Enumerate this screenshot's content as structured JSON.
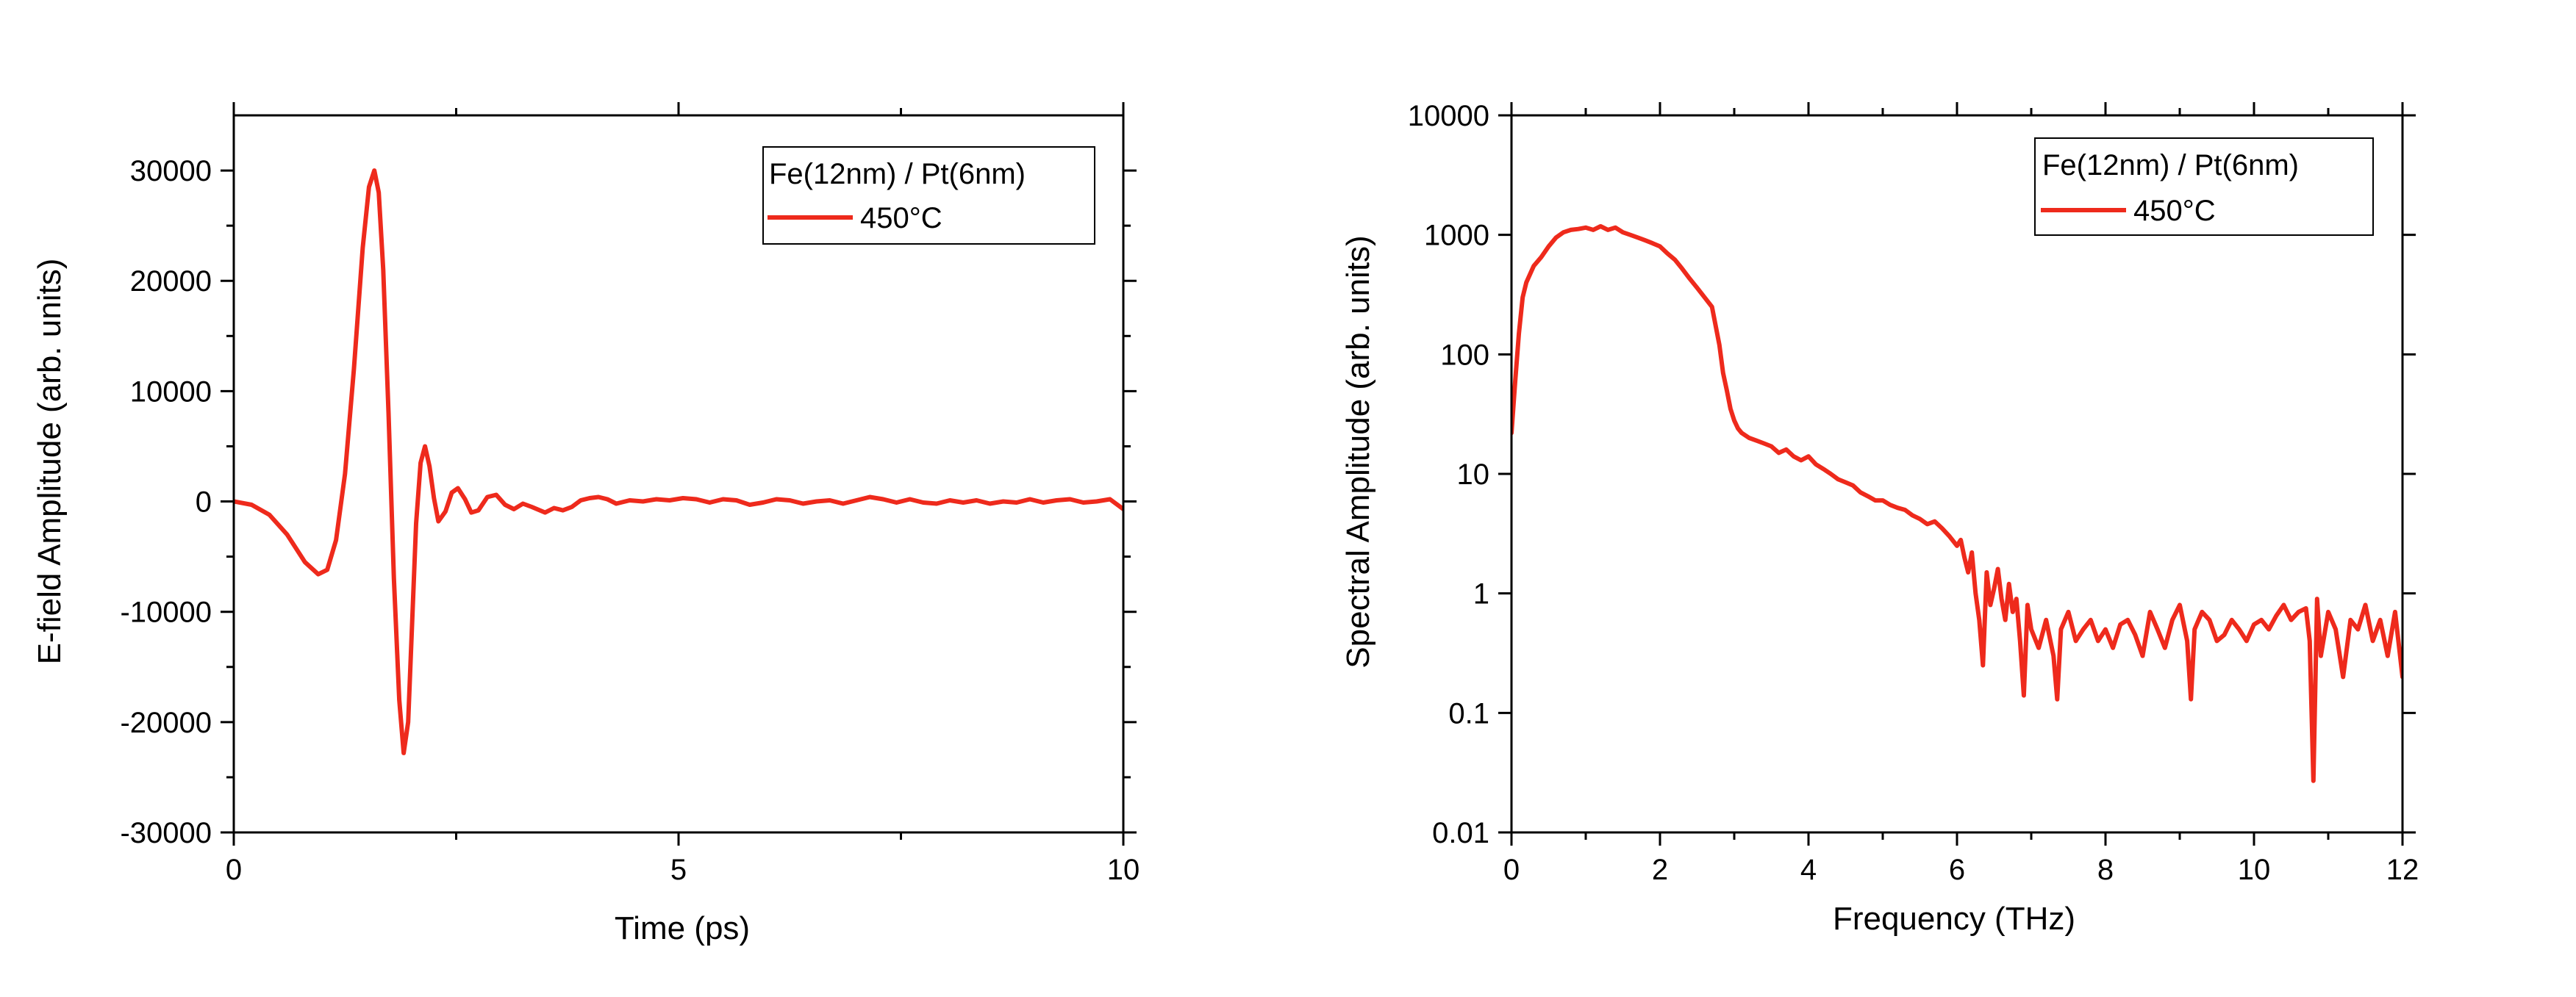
{
  "chart_data": [
    {
      "type": "line",
      "title": "",
      "xlabel": "Time (ps)",
      "ylabel": "E-field Amplitude (arb. units)",
      "xlim": [
        0,
        10
      ],
      "ylim": [
        -30000,
        35000
      ],
      "yscale": "linear",
      "xticks": [
        0,
        5,
        10
      ],
      "xtick_labels": [
        "0",
        "5",
        "10"
      ],
      "yticks": [
        -30000,
        -20000,
        -10000,
        0,
        10000,
        20000,
        30000
      ],
      "ytick_labels": [
        "-30000",
        "-20000",
        "-10000",
        "0",
        "10000",
        "20000",
        "30000"
      ],
      "grid": false,
      "legend_title": "Fe(12nm) / Pt(6nm)",
      "legend_position": "top-right",
      "color": "#ee2a1c",
      "series": [
        {
          "name": "450°C",
          "x": [
            0,
            0.2,
            0.4,
            0.6,
            0.8,
            0.95,
            1.05,
            1.15,
            1.25,
            1.35,
            1.45,
            1.52,
            1.58,
            1.63,
            1.68,
            1.74,
            1.8,
            1.86,
            1.91,
            1.96,
            2.0,
            2.05,
            2.1,
            2.15,
            2.2,
            2.25,
            2.3,
            2.38,
            2.45,
            2.52,
            2.6,
            2.67,
            2.75,
            2.85,
            2.95,
            3.05,
            3.15,
            3.25,
            3.35,
            3.5,
            3.6,
            3.7,
            3.8,
            3.9,
            4.0,
            4.1,
            4.2,
            4.3,
            4.45,
            4.6,
            4.75,
            4.9,
            5.05,
            5.2,
            5.35,
            5.5,
            5.65,
            5.8,
            5.95,
            6.1,
            6.25,
            6.4,
            6.55,
            6.7,
            6.85,
            7.0,
            7.15,
            7.3,
            7.45,
            7.6,
            7.75,
            7.9,
            8.05,
            8.2,
            8.35,
            8.5,
            8.65,
            8.8,
            8.95,
            9.1,
            9.25,
            9.4,
            9.55,
            9.7,
            9.85,
            10.0
          ],
          "values": [
            0,
            -300,
            -1200,
            -3000,
            -5500,
            -6600,
            -6200,
            -3500,
            2500,
            12000,
            23000,
            28500,
            30000,
            28000,
            21000,
            8000,
            -7000,
            -18000,
            -22800,
            -20000,
            -12000,
            -2000,
            3500,
            5000,
            3200,
            300,
            -1800,
            -900,
            800,
            1200,
            200,
            -1000,
            -800,
            400,
            600,
            -300,
            -700,
            -200,
            -500,
            -1000,
            -600,
            -800,
            -500,
            100,
            300,
            400,
            200,
            -200,
            100,
            0,
            200,
            100,
            300,
            200,
            -100,
            200,
            100,
            -300,
            -100,
            200,
            100,
            -200,
            0,
            100,
            -200,
            100,
            400,
            200,
            -100,
            200,
            -100,
            -200,
            100,
            -100,
            100,
            -200,
            0,
            -100,
            200,
            -100,
            100,
            200,
            -100,
            0,
            200,
            -700
          ]
        }
      ]
    },
    {
      "type": "line",
      "title": "",
      "xlabel": "Frequency (THz)",
      "ylabel": "Spectral Amplitude (arb. units)",
      "xlim": [
        0,
        12
      ],
      "ylim": [
        0.01,
        10000
      ],
      "yscale": "log",
      "xticks": [
        0,
        2,
        4,
        6,
        8,
        10,
        12
      ],
      "xtick_labels": [
        "0",
        "2",
        "4",
        "6",
        "8",
        "10",
        "12"
      ],
      "yticks": [
        0.01,
        0.1,
        1,
        10,
        100,
        1000,
        10000
      ],
      "ytick_labels": [
        "0.01",
        "0.1",
        "1",
        "10",
        "100",
        "1000",
        "10000"
      ],
      "grid": false,
      "legend_title": "Fe(12nm) / Pt(6nm)",
      "legend_position": "top-right",
      "color": "#ee2a1c",
      "series": [
        {
          "name": "450°C",
          "x": [
            0.0,
            0.05,
            0.1,
            0.15,
            0.2,
            0.3,
            0.4,
            0.5,
            0.6,
            0.7,
            0.8,
            0.9,
            1.0,
            1.1,
            1.2,
            1.3,
            1.4,
            1.5,
            1.6,
            1.7,
            1.8,
            1.9,
            2.0,
            2.1,
            2.2,
            2.3,
            2.4,
            2.5,
            2.6,
            2.7,
            2.8,
            2.85,
            2.9,
            2.95,
            3.0,
            3.05,
            3.1,
            3.2,
            3.3,
            3.4,
            3.5,
            3.6,
            3.7,
            3.8,
            3.9,
            4.0,
            4.1,
            4.2,
            4.3,
            4.4,
            4.5,
            4.6,
            4.7,
            4.8,
            4.9,
            5.0,
            5.1,
            5.2,
            5.3,
            5.4,
            5.5,
            5.6,
            5.7,
            5.8,
            5.9,
            6.0,
            6.05,
            6.1,
            6.15,
            6.2,
            6.25,
            6.3,
            6.35,
            6.4,
            6.45,
            6.5,
            6.55,
            6.6,
            6.65,
            6.7,
            6.75,
            6.8,
            6.85,
            6.9,
            6.95,
            7.0,
            7.1,
            7.2,
            7.3,
            7.35,
            7.4,
            7.5,
            7.6,
            7.7,
            7.8,
            7.9,
            8.0,
            8.1,
            8.2,
            8.3,
            8.4,
            8.5,
            8.6,
            8.7,
            8.8,
            8.9,
            9.0,
            9.1,
            9.15,
            9.2,
            9.3,
            9.4,
            9.5,
            9.6,
            9.7,
            9.8,
            9.9,
            10.0,
            10.1,
            10.2,
            10.3,
            10.4,
            10.5,
            10.6,
            10.7,
            10.75,
            10.8,
            10.85,
            10.9,
            11.0,
            11.1,
            11.2,
            11.3,
            11.4,
            11.5,
            11.6,
            11.7,
            11.8,
            11.9,
            12.0
          ],
          "values": [
            22,
            60,
            150,
            300,
            400,
            550,
            650,
            800,
            950,
            1050,
            1100,
            1120,
            1150,
            1100,
            1180,
            1100,
            1150,
            1050,
            1000,
            950,
            900,
            850,
            800,
            700,
            620,
            520,
            430,
            360,
            300,
            250,
            120,
            70,
            50,
            35,
            28,
            24,
            22,
            20,
            19,
            18,
            17,
            15,
            16,
            14,
            13,
            14,
            12,
            11,
            10,
            9,
            8.5,
            8,
            7,
            6.5,
            6,
            6,
            5.5,
            5.2,
            5,
            4.5,
            4.2,
            3.8,
            4,
            3.5,
            3,
            2.5,
            2.8,
            2,
            1.5,
            2.2,
            1,
            0.6,
            0.25,
            1.5,
            0.8,
            1.1,
            1.6,
            0.9,
            0.6,
            1.2,
            0.7,
            0.9,
            0.4,
            0.14,
            0.8,
            0.5,
            0.35,
            0.6,
            0.3,
            0.13,
            0.5,
            0.7,
            0.4,
            0.5,
            0.6,
            0.4,
            0.5,
            0.35,
            0.55,
            0.6,
            0.45,
            0.3,
            0.7,
            0.5,
            0.35,
            0.6,
            0.8,
            0.4,
            0.13,
            0.5,
            0.7,
            0.6,
            0.4,
            0.45,
            0.6,
            0.5,
            0.4,
            0.55,
            0.6,
            0.5,
            0.65,
            0.8,
            0.6,
            0.7,
            0.75,
            0.4,
            0.027,
            0.9,
            0.3,
            0.7,
            0.5,
            0.2,
            0.6,
            0.5,
            0.8,
            0.4,
            0.6,
            0.3,
            0.7,
            0.2
          ]
        }
      ]
    }
  ]
}
